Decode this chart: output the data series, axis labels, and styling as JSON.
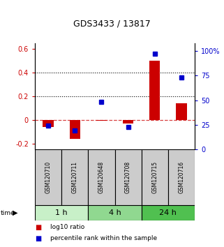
{
  "title": "GDS3433 / 13817",
  "samples": [
    "GSM120710",
    "GSM120711",
    "GSM120648",
    "GSM120708",
    "GSM120715",
    "GSM120716"
  ],
  "log10_ratio": [
    -0.06,
    -0.16,
    -0.01,
    -0.03,
    0.5,
    0.14
  ],
  "percentile_rank": [
    24,
    19,
    48,
    23,
    97,
    73
  ],
  "time_group_info": [
    {
      "start": 0,
      "end": 1,
      "label": "1 h",
      "color": "#c8f0c8"
    },
    {
      "start": 2,
      "end": 3,
      "label": "4 h",
      "color": "#90d890"
    },
    {
      "start": 4,
      "end": 5,
      "label": "24 h",
      "color": "#50c050"
    }
  ],
  "ylim_left": [
    -0.25,
    0.65
  ],
  "ylim_right": [
    0,
    108
  ],
  "yticks_left": [
    -0.2,
    0.0,
    0.2,
    0.4,
    0.6
  ],
  "yticks_right": [
    0,
    25,
    50,
    75,
    100
  ],
  "ytick_labels_left": [
    "-0.2",
    "0",
    "0.2",
    "0.4",
    "0.6"
  ],
  "ytick_labels_right": [
    "0",
    "25",
    "50",
    "75",
    "100%"
  ],
  "red_color": "#cc0000",
  "blue_color": "#0000cc",
  "dotted_line_y": [
    0.2,
    0.4
  ],
  "dashed_line_y": 0.0,
  "bg_sample": "#cccccc",
  "legend_items": [
    "log10 ratio",
    "percentile rank within the sample"
  ],
  "title_fontsize": 9,
  "tick_fontsize": 7,
  "sample_fontsize": 5.5,
  "time_fontsize": 8,
  "legend_fontsize": 6.5
}
